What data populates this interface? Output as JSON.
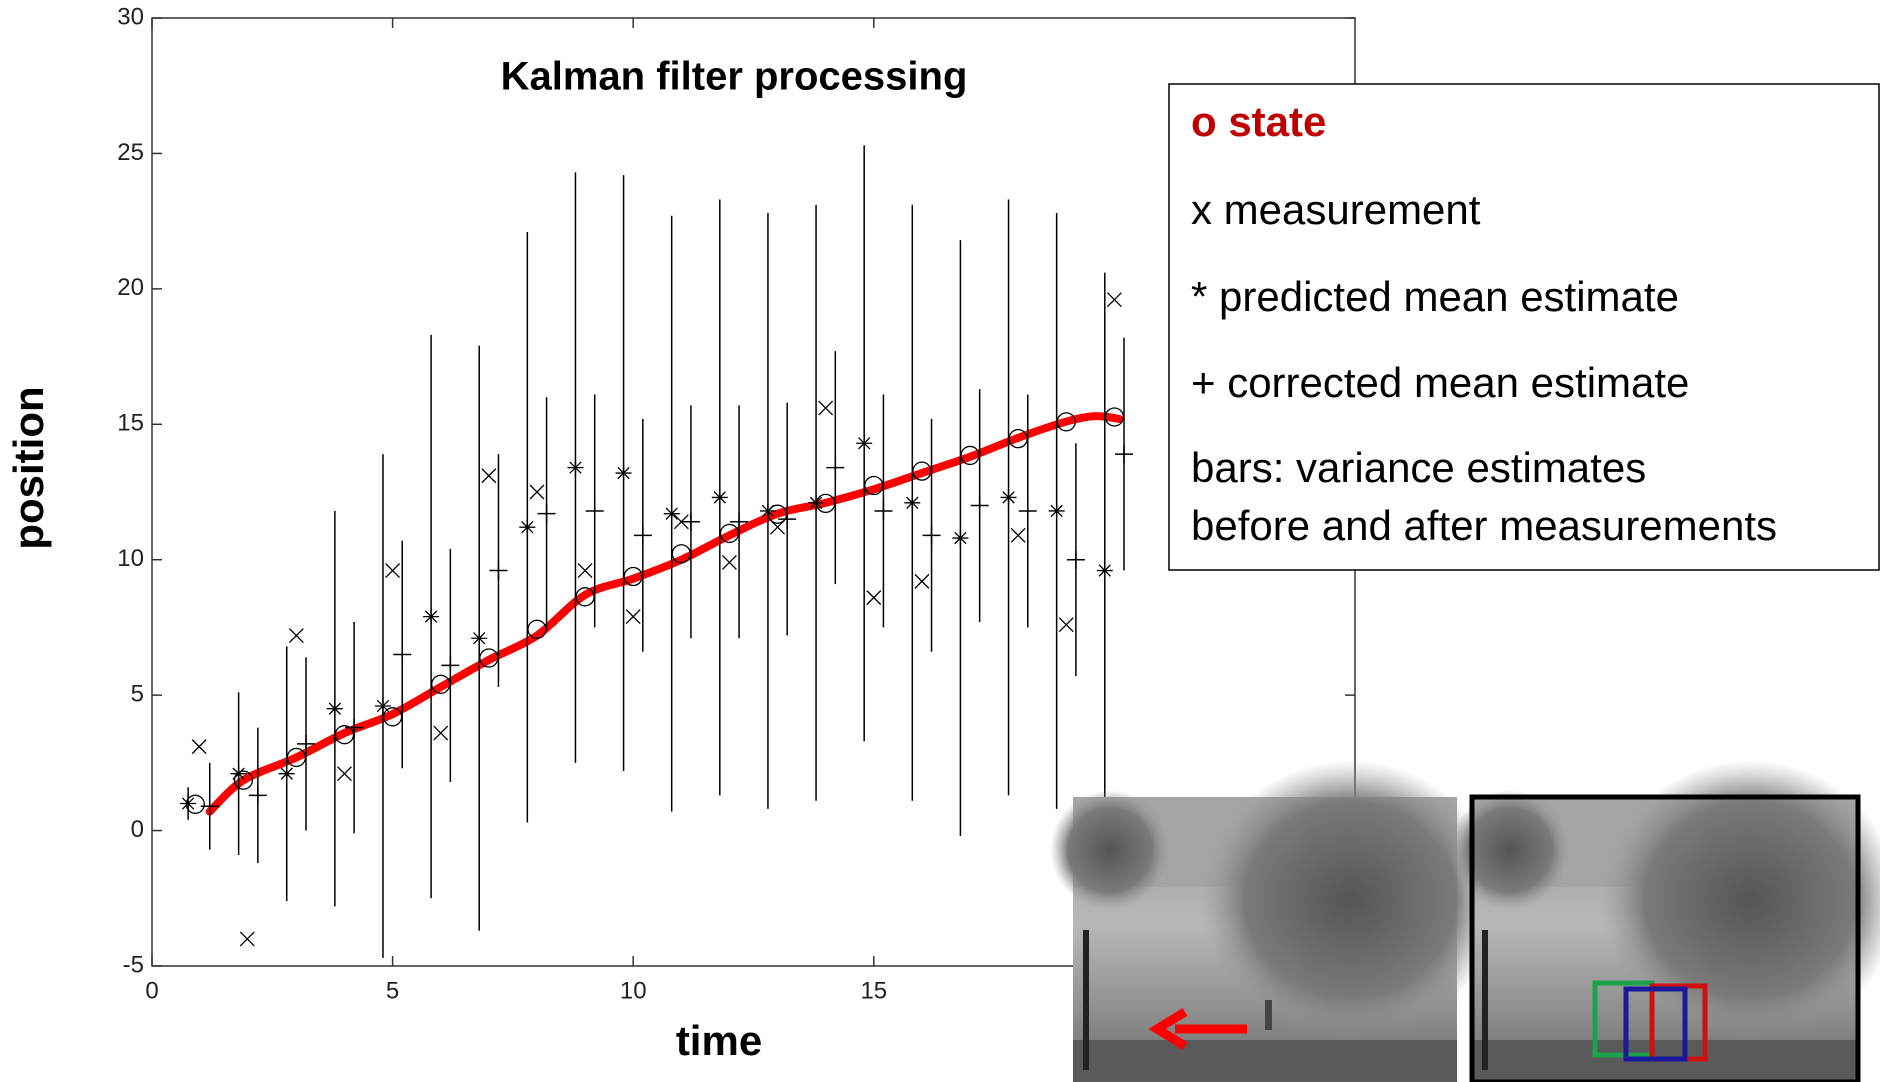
{
  "chart_data": {
    "type": "scatter",
    "title": "Kalman filter processing",
    "x_label": "time",
    "y_label": "position",
    "xlim": [
      0,
      25
    ],
    "ylim": [
      -5,
      30
    ],
    "xticks": [
      0,
      5,
      10,
      15
    ],
    "yticks": [
      -5,
      0,
      5,
      10,
      15,
      20,
      25,
      30
    ],
    "series": [
      {
        "marker": "line",
        "color": "#ff0000",
        "x": [
          1.2,
          1.9,
          3,
          4,
          5,
          6,
          7,
          8,
          9,
          10,
          11,
          12,
          13,
          14,
          15,
          16,
          17,
          18,
          19,
          19.6,
          20.1
        ],
        "values": [
          0.7,
          1.86,
          2.7,
          3.6,
          4.3,
          5.3,
          6.3,
          7.2,
          8.7,
          9.3,
          10,
          10.9,
          11.7,
          12.1,
          12.6,
          13.2,
          13.8,
          14.5,
          15.1,
          15.3,
          15.2
        ]
      },
      {
        "marker": "o",
        "color": "#000000",
        "x": [
          0.9,
          1.9,
          3,
          4,
          5,
          6,
          7,
          8,
          9,
          10,
          11,
          12,
          13,
          14,
          15,
          16,
          17,
          18,
          19,
          20
        ],
        "values": [
          0.97,
          1.86,
          2.7,
          3.54,
          4.2,
          5.4,
          6.37,
          7.43,
          8.63,
          9.38,
          10.22,
          10.97,
          11.68,
          12.08,
          12.74,
          13.27,
          13.85,
          14.47,
          15.09,
          15.27
        ]
      },
      {
        "marker": "x",
        "color": "#000000",
        "x": [
          0.98,
          1.98,
          3,
          4,
          5,
          6,
          7,
          8,
          9,
          10,
          11,
          12,
          13,
          14,
          15,
          16,
          18,
          19,
          20
        ],
        "values": [
          3.1,
          -4.0,
          7.2,
          2.1,
          9.6,
          3.6,
          13.1,
          12.5,
          9.6,
          7.9,
          11.4,
          9.9,
          11.2,
          15.6,
          8.6,
          9.2,
          10.9,
          7.6,
          19.6
        ]
      },
      {
        "marker": "*",
        "color": "#000000",
        "x": [
          0.75,
          1.8,
          2.8,
          3.8,
          4.8,
          5.8,
          6.8,
          7.8,
          8.8,
          9.8,
          10.8,
          11.8,
          12.8,
          13.8,
          14.8,
          15.8,
          16.8,
          17.8,
          18.8,
          19.8
        ],
        "values": [
          1.0,
          2.1,
          2.1,
          4.5,
          4.6,
          7.9,
          7.1,
          11.2,
          13.4,
          13.2,
          11.7,
          12.3,
          11.8,
          12.1,
          14.3,
          12.1,
          10.8,
          12.3,
          11.8,
          9.6
        ],
        "errors": [
          0.6,
          3,
          4.7,
          7.3,
          9.3,
          10.4,
          10.8,
          10.9,
          10.9,
          11,
          11,
          11,
          11,
          11,
          11,
          11,
          11,
          11,
          11,
          11
        ]
      },
      {
        "marker": "+",
        "color": "#000000",
        "x": [
          1.2,
          2.2,
          3.2,
          4.2,
          5.2,
          6.2,
          7.2,
          8.2,
          9.2,
          10.2,
          11.2,
          12.2,
          13.2,
          14.2,
          15.2,
          16.2,
          17.2,
          18.2,
          19.2,
          20.2
        ],
        "values": [
          0.9,
          1.3,
          3.2,
          3.8,
          6.5,
          6.1,
          9.6,
          11.7,
          11.8,
          10.9,
          11.4,
          11.4,
          11.5,
          13.4,
          11.8,
          10.9,
          12.0,
          11.8,
          10.0,
          13.9
        ],
        "errors": [
          1.6,
          2.5,
          3.2,
          3.9,
          4.2,
          4.3,
          4.3,
          4.3,
          4.3,
          4.3,
          4.3,
          4.3,
          4.3,
          4.3,
          4.3,
          4.3,
          4.3,
          4.3,
          4.3,
          4.3
        ]
      }
    ],
    "legend_text": [
      "o state",
      "x measurement",
      "*  predicted mean estimate",
      "+ corrected mean estimate",
      "bars:  variance estimates",
      "before and after measurements"
    ],
    "legend_text_colors": [
      "#c00000",
      "#000000",
      "#000000",
      "#000000",
      "#000000",
      "#000000"
    ]
  }
}
